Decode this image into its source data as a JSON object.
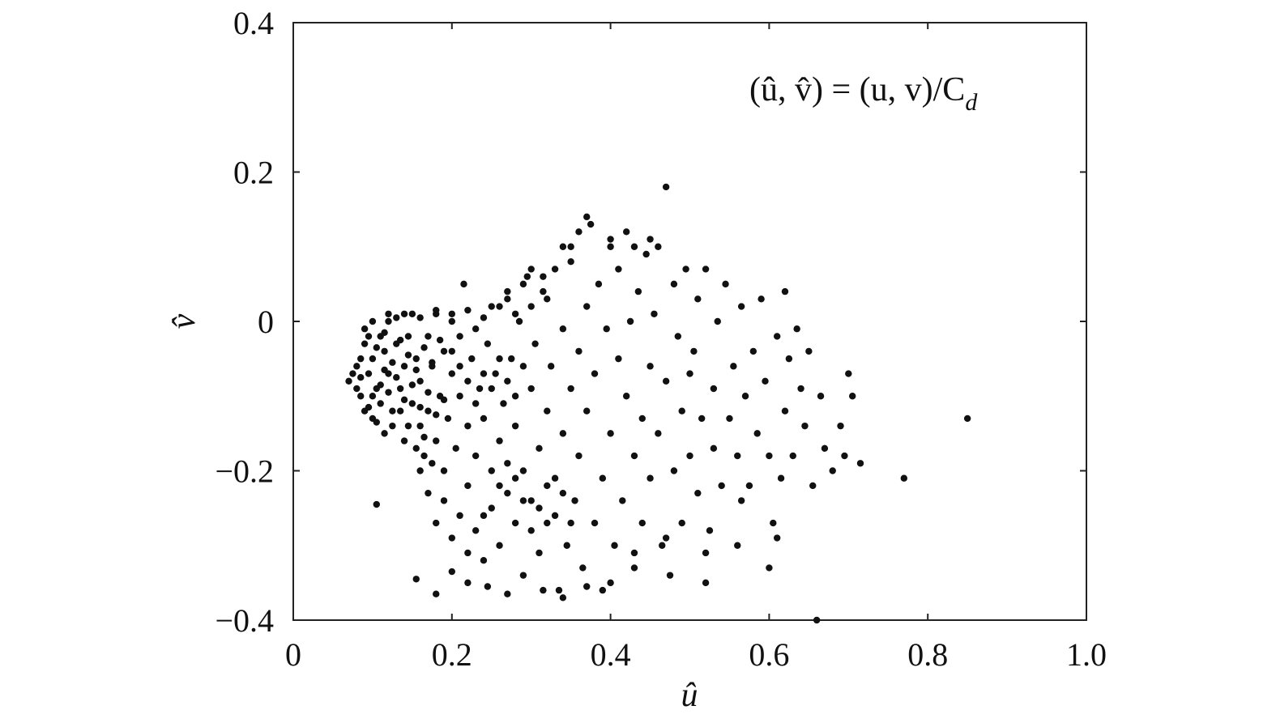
{
  "chart_data": {
    "type": "scatter",
    "title": "",
    "xlabel": "û",
    "ylabel": "v̂",
    "annotation": "(û, v̂) = (u, v)/C",
    "annotation_subscript": "d",
    "xlim": [
      0,
      1.0
    ],
    "ylim": [
      -0.4,
      0.4
    ],
    "xticks": [
      0,
      0.2,
      0.4,
      0.6,
      0.8,
      1.0
    ],
    "xtick_labels": [
      "0",
      "0.2",
      "0.4",
      "0.6",
      "0.8",
      "1.0"
    ],
    "yticks": [
      -0.4,
      -0.2,
      0,
      0.2,
      0.4
    ],
    "ytick_labels": [
      "−0.4",
      "−0.2",
      "0",
      "0.2",
      "0.4"
    ],
    "grid": false,
    "marker_color": "#111111",
    "series": [
      {
        "points": [
          [
            0.07,
            -0.08
          ],
          [
            0.075,
            -0.07
          ],
          [
            0.08,
            -0.09
          ],
          [
            0.08,
            -0.06
          ],
          [
            0.085,
            -0.1
          ],
          [
            0.085,
            -0.05
          ],
          [
            0.09,
            -0.12
          ],
          [
            0.09,
            -0.03
          ],
          [
            0.09,
            -0.01
          ],
          [
            0.095,
            -0.07
          ],
          [
            0.1,
            -0.13
          ],
          [
            0.1,
            0.0
          ],
          [
            0.1,
            -0.05
          ],
          [
            0.105,
            -0.09
          ],
          [
            0.11,
            -0.02
          ],
          [
            0.11,
            -0.11
          ],
          [
            0.115,
            -0.15
          ],
          [
            0.115,
            -0.04
          ],
          [
            0.12,
            0.0
          ],
          [
            0.12,
            -0.07
          ],
          [
            0.125,
            -0.12
          ],
          [
            0.13,
            -0.03
          ],
          [
            0.13,
            0.005
          ],
          [
            0.135,
            -0.09
          ],
          [
            0.14,
            -0.06
          ],
          [
            0.14,
            -0.16
          ],
          [
            0.145,
            -0.02
          ],
          [
            0.15,
            0.01
          ],
          [
            0.15,
            -0.11
          ],
          [
            0.155,
            -0.05
          ],
          [
            0.16,
            -0.14
          ],
          [
            0.16,
            -0.08
          ],
          [
            0.165,
            -0.18
          ],
          [
            0.17,
            -0.02
          ],
          [
            0.17,
            -0.12
          ],
          [
            0.175,
            -0.06
          ],
          [
            0.18,
            0.01
          ],
          [
            0.18,
            -0.16
          ],
          [
            0.185,
            -0.1
          ],
          [
            0.19,
            -0.04
          ],
          [
            0.19,
            -0.2
          ],
          [
            0.195,
            -0.13
          ],
          [
            0.2,
            -0.07
          ],
          [
            0.2,
            0.0
          ],
          [
            0.205,
            -0.17
          ],
          [
            0.21,
            -0.02
          ],
          [
            0.21,
            -0.1
          ],
          [
            0.215,
            0.05
          ],
          [
            0.22,
            -0.14
          ],
          [
            0.22,
            -0.22
          ],
          [
            0.225,
            -0.05
          ],
          [
            0.23,
            -0.18
          ],
          [
            0.23,
            -0.01
          ],
          [
            0.235,
            -0.09
          ],
          [
            0.24,
            -0.26
          ],
          [
            0.24,
            -0.13
          ],
          [
            0.245,
            -0.03
          ],
          [
            0.25,
            0.02
          ],
          [
            0.25,
            -0.2
          ],
          [
            0.255,
            -0.07
          ],
          [
            0.26,
            -0.16
          ],
          [
            0.26,
            -0.3
          ],
          [
            0.265,
            -0.11
          ],
          [
            0.27,
            -0.23
          ],
          [
            0.27,
            0.03
          ],
          [
            0.275,
            -0.05
          ],
          [
            0.28,
            -0.27
          ],
          [
            0.28,
            -0.14
          ],
          [
            0.285,
            0.0
          ],
          [
            0.29,
            -0.2
          ],
          [
            0.29,
            -0.34
          ],
          [
            0.295,
            0.06
          ],
          [
            0.3,
            -0.09
          ],
          [
            0.3,
            -0.24
          ],
          [
            0.305,
            -0.03
          ],
          [
            0.31,
            -0.17
          ],
          [
            0.31,
            -0.31
          ],
          [
            0.315,
            0.04
          ],
          [
            0.32,
            -0.12
          ],
          [
            0.32,
            -0.27
          ],
          [
            0.325,
            -0.06
          ],
          [
            0.33,
            -0.21
          ],
          [
            0.33,
            0.07
          ],
          [
            0.335,
            -0.36
          ],
          [
            0.34,
            -0.15
          ],
          [
            0.34,
            -0.01
          ],
          [
            0.345,
            -0.3
          ],
          [
            0.35,
            -0.09
          ],
          [
            0.35,
            0.1
          ],
          [
            0.355,
            -0.24
          ],
          [
            0.36,
            -0.04
          ],
          [
            0.36,
            -0.18
          ],
          [
            0.365,
            -0.33
          ],
          [
            0.37,
            0.02
          ],
          [
            0.37,
            -0.12
          ],
          [
            0.375,
            0.13
          ],
          [
            0.38,
            -0.27
          ],
          [
            0.38,
            -0.07
          ],
          [
            0.385,
            0.05
          ],
          [
            0.39,
            -0.21
          ],
          [
            0.39,
            -0.36
          ],
          [
            0.395,
            -0.01
          ],
          [
            0.4,
            -0.15
          ],
          [
            0.4,
            0.11
          ],
          [
            0.405,
            -0.3
          ],
          [
            0.41,
            -0.05
          ],
          [
            0.41,
            0.07
          ],
          [
            0.415,
            -0.24
          ],
          [
            0.42,
            -0.1
          ],
          [
            0.42,
            0.12
          ],
          [
            0.425,
            0.0
          ],
          [
            0.43,
            -0.18
          ],
          [
            0.43,
            -0.33
          ],
          [
            0.435,
            0.04
          ],
          [
            0.44,
            -0.13
          ],
          [
            0.44,
            -0.27
          ],
          [
            0.445,
            0.09
          ],
          [
            0.45,
            -0.06
          ],
          [
            0.45,
            -0.21
          ],
          [
            0.455,
            0.01
          ],
          [
            0.46,
            -0.15
          ],
          [
            0.46,
            0.1
          ],
          [
            0.465,
            -0.3
          ],
          [
            0.47,
            0.18
          ],
          [
            0.47,
            -0.08
          ],
          [
            0.475,
            -0.34
          ],
          [
            0.48,
            -0.2
          ],
          [
            0.48,
            0.05
          ],
          [
            0.485,
            -0.02
          ],
          [
            0.49,
            -0.12
          ],
          [
            0.49,
            -0.27
          ],
          [
            0.495,
            0.07
          ],
          [
            0.5,
            -0.07
          ],
          [
            0.5,
            -0.18
          ],
          [
            0.505,
            -0.04
          ],
          [
            0.51,
            -0.23
          ],
          [
            0.51,
            0.03
          ],
          [
            0.515,
            -0.13
          ],
          [
            0.52,
            0.07
          ],
          [
            0.52,
            -0.35
          ],
          [
            0.525,
            -0.28
          ],
          [
            0.53,
            -0.09
          ],
          [
            0.53,
            -0.17
          ],
          [
            0.535,
            0.0
          ],
          [
            0.54,
            -0.22
          ],
          [
            0.545,
            0.05
          ],
          [
            0.55,
            -0.13
          ],
          [
            0.555,
            -0.06
          ],
          [
            0.56,
            -0.3
          ],
          [
            0.56,
            -0.18
          ],
          [
            0.565,
            0.02
          ],
          [
            0.57,
            -0.1
          ],
          [
            0.575,
            -0.22
          ],
          [
            0.58,
            -0.04
          ],
          [
            0.585,
            -0.15
          ],
          [
            0.59,
            0.03
          ],
          [
            0.595,
            -0.08
          ],
          [
            0.6,
            -0.18
          ],
          [
            0.6,
            -0.33
          ],
          [
            0.605,
            -0.27
          ],
          [
            0.61,
            -0.02
          ],
          [
            0.615,
            -0.21
          ],
          [
            0.62,
            0.04
          ],
          [
            0.62,
            -0.12
          ],
          [
            0.625,
            -0.05
          ],
          [
            0.63,
            -0.18
          ],
          [
            0.635,
            -0.01
          ],
          [
            0.64,
            -0.09
          ],
          [
            0.645,
            -0.14
          ],
          [
            0.65,
            -0.04
          ],
          [
            0.655,
            -0.22
          ],
          [
            0.66,
            -0.4
          ],
          [
            0.665,
            -0.1
          ],
          [
            0.67,
            -0.17
          ],
          [
            0.68,
            -0.2
          ],
          [
            0.69,
            -0.14
          ],
          [
            0.695,
            -0.18
          ],
          [
            0.7,
            -0.07
          ],
          [
            0.705,
            -0.1
          ],
          [
            0.715,
            -0.19
          ],
          [
            0.77,
            -0.21
          ],
          [
            0.85,
            -0.13
          ],
          [
            0.105,
            -0.245
          ],
          [
            0.155,
            -0.345
          ],
          [
            0.18,
            -0.365
          ],
          [
            0.2,
            -0.335
          ],
          [
            0.22,
            -0.35
          ],
          [
            0.245,
            -0.355
          ],
          [
            0.27,
            -0.365
          ],
          [
            0.315,
            -0.36
          ],
          [
            0.34,
            -0.37
          ],
          [
            0.37,
            -0.355
          ],
          [
            0.4,
            -0.35
          ],
          [
            0.43,
            -0.31
          ],
          [
            0.47,
            -0.29
          ],
          [
            0.52,
            -0.31
          ],
          [
            0.565,
            -0.24
          ],
          [
            0.61,
            -0.29
          ],
          [
            0.37,
            0.14
          ],
          [
            0.4,
            0.1
          ],
          [
            0.36,
            0.12
          ],
          [
            0.35,
            0.08
          ],
          [
            0.34,
            0.1
          ],
          [
            0.43,
            0.1
          ],
          [
            0.45,
            0.11
          ],
          [
            0.29,
            0.05
          ],
          [
            0.3,
            0.07
          ],
          [
            0.315,
            0.06
          ],
          [
            0.27,
            0.04
          ],
          [
            0.26,
            0.02
          ],
          [
            0.095,
            -0.02
          ],
          [
            0.105,
            -0.035
          ],
          [
            0.115,
            -0.015
          ],
          [
            0.125,
            -0.055
          ],
          [
            0.135,
            -0.025
          ],
          [
            0.145,
            -0.045
          ],
          [
            0.155,
            -0.065
          ],
          [
            0.165,
            -0.035
          ],
          [
            0.175,
            -0.055
          ],
          [
            0.185,
            -0.025
          ],
          [
            0.1,
            -0.1
          ],
          [
            0.11,
            -0.085
          ],
          [
            0.12,
            -0.095
          ],
          [
            0.13,
            -0.075
          ],
          [
            0.14,
            -0.105
          ],
          [
            0.15,
            -0.085
          ],
          [
            0.16,
            -0.115
          ],
          [
            0.17,
            -0.095
          ],
          [
            0.18,
            -0.125
          ],
          [
            0.19,
            -0.105
          ],
          [
            0.2,
            -0.04
          ],
          [
            0.21,
            -0.06
          ],
          [
            0.22,
            -0.08
          ],
          [
            0.23,
            -0.11
          ],
          [
            0.24,
            -0.07
          ],
          [
            0.25,
            -0.09
          ],
          [
            0.26,
            -0.05
          ],
          [
            0.27,
            -0.08
          ],
          [
            0.28,
            -0.1
          ],
          [
            0.29,
            -0.06
          ],
          [
            0.16,
            -0.2
          ],
          [
            0.17,
            -0.23
          ],
          [
            0.18,
            -0.27
          ],
          [
            0.19,
            -0.24
          ],
          [
            0.2,
            -0.29
          ],
          [
            0.21,
            -0.26
          ],
          [
            0.22,
            -0.31
          ],
          [
            0.23,
            -0.28
          ],
          [
            0.24,
            -0.32
          ],
          [
            0.25,
            -0.25
          ],
          [
            0.26,
            -0.22
          ],
          [
            0.27,
            -0.19
          ],
          [
            0.28,
            -0.21
          ],
          [
            0.29,
            -0.24
          ],
          [
            0.3,
            -0.28
          ],
          [
            0.31,
            -0.25
          ],
          [
            0.32,
            -0.22
          ],
          [
            0.33,
            -0.26
          ],
          [
            0.34,
            -0.23
          ],
          [
            0.35,
            -0.27
          ],
          [
            0.085,
            -0.075
          ],
          [
            0.095,
            -0.115
          ],
          [
            0.105,
            -0.135
          ],
          [
            0.115,
            -0.065
          ],
          [
            0.125,
            -0.14
          ],
          [
            0.135,
            -0.12
          ],
          [
            0.145,
            -0.14
          ],
          [
            0.155,
            -0.17
          ],
          [
            0.165,
            -0.155
          ],
          [
            0.175,
            -0.19
          ],
          [
            0.12,
            0.01
          ],
          [
            0.14,
            0.01
          ],
          [
            0.16,
            0.005
          ],
          [
            0.18,
            0.015
          ],
          [
            0.2,
            0.01
          ],
          [
            0.22,
            0.015
          ],
          [
            0.24,
            0.005
          ],
          [
            0.28,
            0.01
          ],
          [
            0.3,
            0.02
          ],
          [
            0.32,
            0.03
          ]
        ]
      }
    ]
  }
}
